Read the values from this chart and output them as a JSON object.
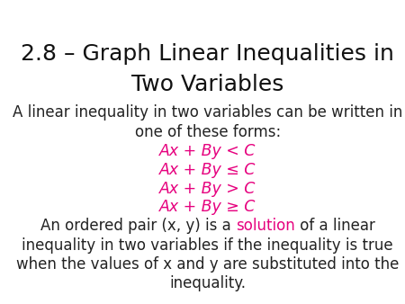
{
  "title_line1": "2.8 – Graph Linear Inequalities in",
  "title_line2": "Two Variables",
  "title_fontsize": 18,
  "title_color": "#111111",
  "bg_color": "#ffffff",
  "body1_line1": "A linear inequality in two variables can be written in",
  "body1_line2": "one of these forms:",
  "body_fontsize": 12,
  "body_color": "#222222",
  "inequalities": [
    "Ax + By < C",
    "Ax + By ≤ C",
    "Ax + By > C",
    "Ax + By ≥ C"
  ],
  "ineq_color": "#e6007e",
  "ineq_fontsize": 12.5,
  "para2_line1_black1": "An ordered pair (x, y) is a ",
  "para2_line1_pink": "solution",
  "para2_line1_black2": " of a linear",
  "para2_line2": "inequality in two variables if the inequality is true",
  "para2_line3": "when the values of x and y are substituted into the",
  "para2_line4": "inequality.",
  "pink_color": "#e6007e"
}
